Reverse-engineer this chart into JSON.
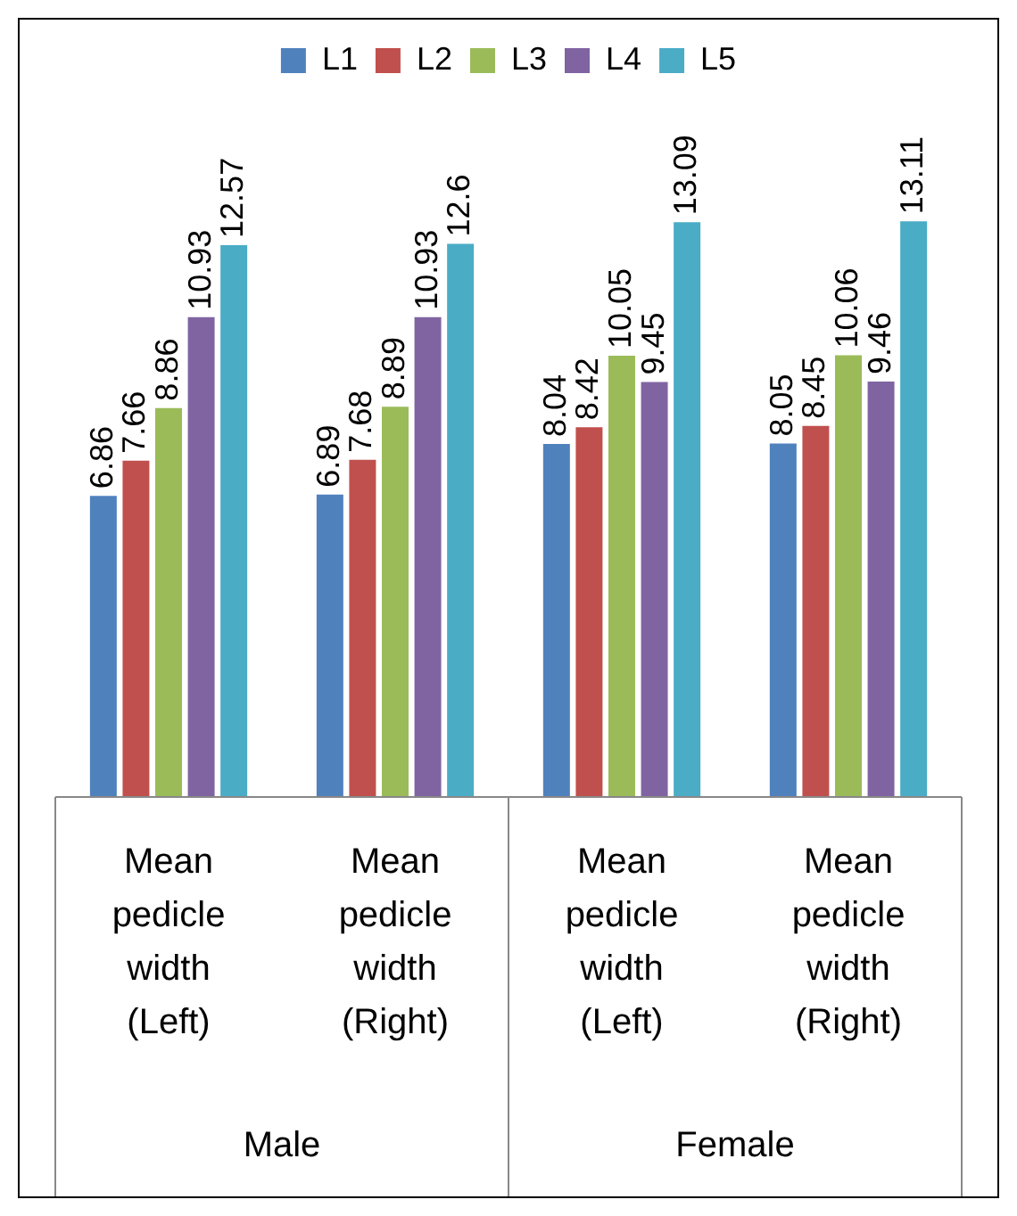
{
  "chart_data": {
    "type": "bar",
    "categories": [
      "Mean pedicle width (Left)",
      "Mean pedicle width (Right)",
      "Mean pedicle width (Left)",
      "Mean pedicle width (Right)"
    ],
    "series": [
      {
        "name": "L1",
        "color": "#4f81bd",
        "values": [
          6.86,
          6.89,
          8.04,
          8.05
        ]
      },
      {
        "name": "L2",
        "color": "#c0504d",
        "values": [
          7.66,
          7.68,
          8.42,
          8.45
        ]
      },
      {
        "name": "L3",
        "color": "#9bbb59",
        "values": [
          8.86,
          8.89,
          10.05,
          10.06
        ]
      },
      {
        "name": "L4",
        "color": "#8064a2",
        "values": [
          10.93,
          10.93,
          9.45,
          9.46
        ]
      },
      {
        "name": "L5",
        "color": "#4bacc6",
        "values": [
          12.57,
          12.6,
          13.09,
          13.11
        ]
      }
    ],
    "tick_labels": false,
    "data_labels": true,
    "legend": "top",
    "grid": false,
    "annotations": [
      "Male",
      "Female"
    ]
  }
}
